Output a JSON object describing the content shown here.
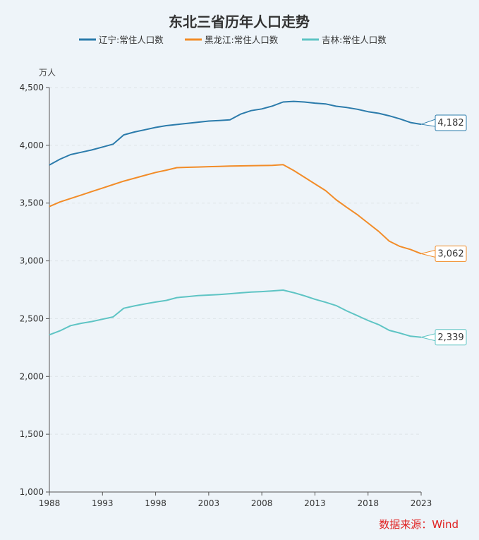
{
  "chart_data": {
    "type": "line",
    "title": "东北三省历年人口走势",
    "ylabel": "万人",
    "xlabel": "",
    "ylim": [
      1000,
      4500
    ],
    "xlim": [
      1988,
      2023
    ],
    "yticks": [
      "1,000",
      "1,500",
      "2,000",
      "2,500",
      "3,000",
      "3,500",
      "4,000",
      "4,500"
    ],
    "xticks": [
      "1988",
      "1993",
      "1998",
      "2003",
      "2008",
      "2013",
      "2018",
      "2023"
    ],
    "grid": true,
    "legend_position": "top",
    "x": [
      1988,
      1989,
      1990,
      1991,
      1992,
      1993,
      1994,
      1995,
      1996,
      1997,
      1998,
      1999,
      2000,
      2001,
      2002,
      2003,
      2004,
      2005,
      2006,
      2007,
      2008,
      2009,
      2010,
      2011,
      2012,
      2013,
      2014,
      2015,
      2016,
      2017,
      2018,
      2019,
      2020,
      2021,
      2022,
      2023
    ],
    "series": [
      {
        "name": "辽宁:常住人口数",
        "color": "#2b7bab",
        "end_label": "4,182",
        "values": [
          3830,
          3880,
          3920,
          3940,
          3960,
          3985,
          4010,
          4090,
          4115,
          4135,
          4155,
          4170,
          4180,
          4190,
          4200,
          4210,
          4215,
          4220,
          4270,
          4300,
          4315,
          4340,
          4375,
          4380,
          4375,
          4365,
          4358,
          4338,
          4327,
          4312,
          4291,
          4277,
          4255,
          4229,
          4197,
          4182
        ]
      },
      {
        "name": "黑龙江:常住人口数",
        "color": "#f28c28",
        "end_label": "3,062",
        "values": [
          3470,
          3510,
          3540,
          3570,
          3600,
          3630,
          3660,
          3690,
          3715,
          3740,
          3765,
          3785,
          3807,
          3810,
          3812,
          3815,
          3817,
          3820,
          3822,
          3823,
          3825,
          3826,
          3833,
          3782,
          3724,
          3666,
          3608,
          3529,
          3463,
          3399,
          3327,
          3255,
          3171,
          3125,
          3099,
          3062
        ]
      },
      {
        "name": "吉林:常住人口数",
        "color": "#5ec4c4",
        "end_label": "2,339",
        "values": [
          2360,
          2395,
          2440,
          2460,
          2475,
          2495,
          2515,
          2590,
          2610,
          2628,
          2644,
          2658,
          2682,
          2691,
          2699,
          2704,
          2709,
          2716,
          2723,
          2730,
          2734,
          2740,
          2747,
          2725,
          2698,
          2668,
          2642,
          2613,
          2567,
          2526,
          2484,
          2448,
          2399,
          2375,
          2348,
          2339
        ]
      }
    ]
  },
  "source": "数据来源：Wind"
}
